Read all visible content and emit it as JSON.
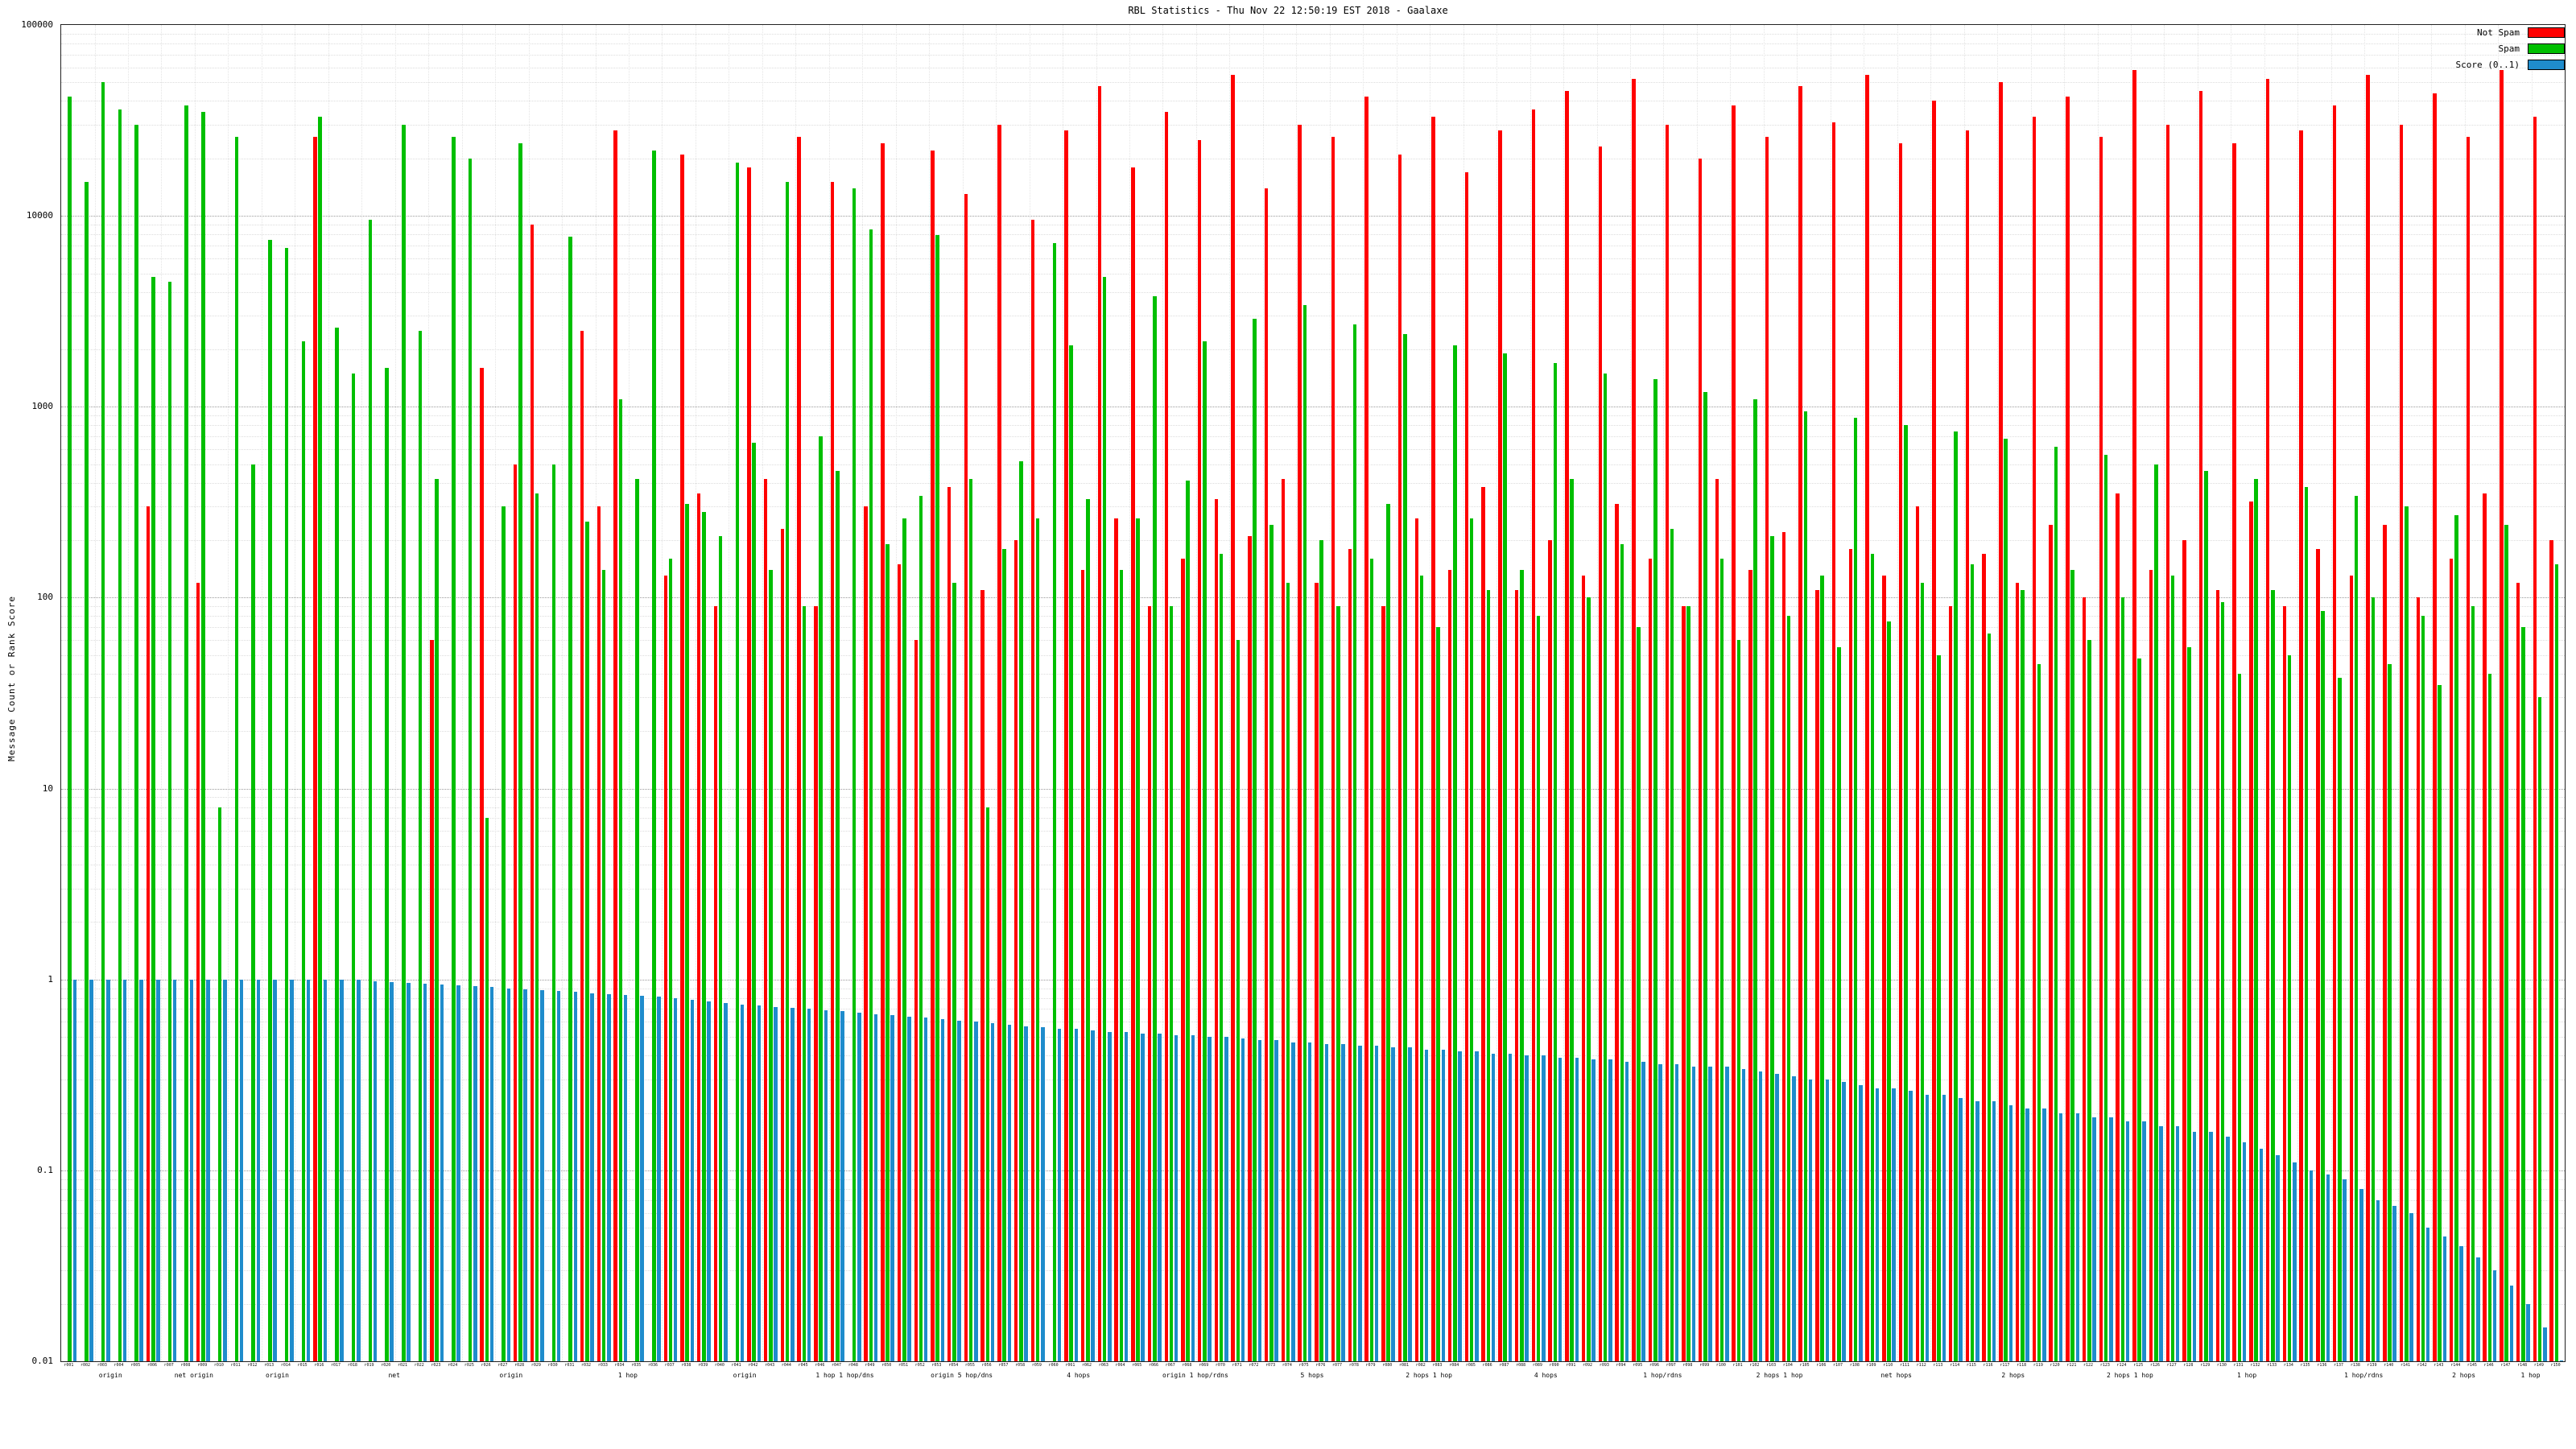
{
  "title": "RBL Statistics - Thu Nov 22 12:50:19 EST 2018 - Gaalaxe",
  "axes": {
    "ylabel": "Message Count or Rank Score",
    "ymin": 0.01,
    "ymax": 100000,
    "yscale": "log"
  },
  "legend": [
    {
      "label": "Not Spam",
      "color": "#ff0000"
    },
    {
      "label": "Spam",
      "color": "#00bf00"
    },
    {
      "label": "Score (0..1)",
      "color": "#1f8ccc"
    }
  ],
  "chart_data": {
    "type": "bar",
    "title": "RBL Statistics - Thu Nov 22 12:50:19 EST 2018 - Gaalaxe",
    "xlabel": "",
    "ylabel": "Message Count or Rank Score",
    "yscale": "log",
    "ylim": [
      0.01,
      100000
    ],
    "grid": true,
    "legend_position": "top-right",
    "categories": [
      "r001",
      "r002",
      "r003",
      "r004",
      "r005",
      "r006",
      "r007",
      "r008",
      "r009",
      "r010",
      "r011",
      "r012",
      "r013",
      "r014",
      "r015",
      "r016",
      "r017",
      "r018",
      "r019",
      "r020",
      "r021",
      "r022",
      "r023",
      "r024",
      "r025",
      "r026",
      "r027",
      "r028",
      "r029",
      "r030",
      "r031",
      "r032",
      "r033",
      "r034",
      "r035",
      "r036",
      "r037",
      "r038",
      "r039",
      "r040",
      "r041",
      "r042",
      "r043",
      "r044",
      "r045",
      "r046",
      "r047",
      "r048",
      "r049",
      "r050",
      "r051",
      "r052",
      "r053",
      "r054",
      "r055",
      "r056",
      "r057",
      "r058",
      "r059",
      "r060",
      "r061",
      "r062",
      "r063",
      "r064",
      "r065",
      "r066",
      "r067",
      "r068",
      "r069",
      "r070",
      "r071",
      "r072",
      "r073",
      "r074",
      "r075",
      "r076",
      "r077",
      "r078",
      "r079",
      "r080",
      "r081",
      "r082",
      "r083",
      "r084",
      "r085",
      "r086",
      "r087",
      "r088",
      "r089",
      "r090",
      "r091",
      "r092",
      "r093",
      "r094",
      "r095",
      "r096",
      "r097",
      "r098",
      "r099",
      "r100",
      "r101",
      "r102",
      "r103",
      "r104",
      "r105",
      "r106",
      "r107",
      "r108",
      "r109",
      "r110",
      "r111",
      "r112",
      "r113",
      "r114",
      "r115",
      "r116",
      "r117",
      "r118",
      "r119",
      "r120",
      "r121",
      "r122",
      "r123",
      "r124",
      "r125",
      "r126",
      "r127",
      "r128",
      "r129",
      "r130",
      "r131",
      "r132",
      "r133",
      "r134",
      "r135",
      "r136",
      "r137",
      "r138",
      "r139",
      "r140",
      "r141",
      "r142",
      "r143",
      "r144",
      "r145",
      "r146",
      "r147",
      "r148",
      "r149",
      "r150"
    ],
    "series": [
      {
        "name": "Not Spam",
        "color": "#ff0000",
        "values": [
          0,
          0,
          0,
          0,
          0,
          300,
          0,
          0,
          120,
          0,
          0,
          0,
          0,
          0,
          0,
          26000,
          0,
          0,
          0,
          0,
          0,
          0,
          60,
          0,
          0,
          1600,
          0,
          500,
          9000,
          0,
          0,
          2500,
          300,
          28000,
          0,
          0,
          130,
          21000,
          350,
          90,
          0,
          18000,
          420,
          230,
          26000,
          90,
          15000,
          0,
          300,
          24000,
          150,
          60,
          22000,
          380,
          13000,
          110,
          30000,
          200,
          9500,
          0,
          28000,
          140,
          48000,
          260,
          18000,
          90,
          35000,
          160,
          25000,
          330,
          55000,
          210,
          14000,
          420,
          30000,
          120,
          26000,
          180,
          42000,
          90,
          21000,
          260,
          33000,
          140,
          17000,
          380,
          28000,
          110,
          36000,
          200,
          45000,
          130,
          23000,
          310,
          52000,
          160,
          30000,
          90,
          20000,
          420,
          38000,
          140,
          26000,
          220,
          48000,
          110,
          31000,
          180,
          55000,
          130,
          24000,
          300,
          40000,
          90,
          28000,
          170,
          50000,
          120,
          33000,
          240,
          42000,
          100,
          26000,
          350,
          58000,
          140,
          30000,
          200,
          45000,
          110,
          24000,
          320,
          52000,
          90,
          28000,
          180,
          38000,
          130,
          55000,
          240,
          30000,
          100,
          44000,
          160,
          26000,
          350,
          58000,
          120,
          33000,
          200
        ]
      },
      {
        "name": "Spam",
        "color": "#00bf00",
        "values": [
          42000,
          15000,
          50000,
          36000,
          30000,
          4800,
          4500,
          38000,
          35000,
          8,
          26000,
          500,
          7500,
          6800,
          2200,
          33000,
          2600,
          1500,
          9500,
          1600,
          30000,
          2500,
          420,
          26000,
          20000,
          7,
          300,
          24000,
          350,
          500,
          7800,
          250,
          140,
          1100,
          420,
          22000,
          160,
          310,
          280,
          210,
          19000,
          650,
          140,
          15000,
          90,
          700,
          460,
          14000,
          8500,
          190,
          260,
          340,
          7900,
          120,
          420,
          8,
          180,
          520,
          260,
          7200,
          2100,
          330,
          4800,
          140,
          260,
          3800,
          90,
          410,
          2200,
          170,
          60,
          2900,
          240,
          120,
          3400,
          200,
          90,
          2700,
          160,
          310,
          2400,
          130,
          70,
          2100,
          260,
          110,
          1900,
          140,
          80,
          1700,
          420,
          100,
          1500,
          190,
          70,
          1400,
          230,
          90,
          1200,
          160,
          60,
          1100,
          210,
          80,
          950,
          130,
          55,
          880,
          170,
          75,
          800,
          120,
          50,
          740,
          150,
          65,
          680,
          110,
          45,
          620,
          140,
          60,
          560,
          100,
          48,
          500,
          130,
          55,
          460,
          95,
          40,
          420,
          110,
          50,
          380,
          85,
          38,
          340,
          100,
          45,
          300,
          80,
          35,
          270,
          90,
          40,
          240,
          70,
          30,
          150
        ]
      },
      {
        "name": "Score (0..1)",
        "color": "#1f8ccc",
        "values": [
          1,
          1,
          1,
          1,
          1,
          1,
          1,
          1,
          1,
          1,
          1,
          1,
          1,
          1,
          1,
          1,
          1,
          1,
          0.98,
          0.97,
          0.96,
          0.95,
          0.94,
          0.93,
          0.92,
          0.91,
          0.9,
          0.89,
          0.88,
          0.87,
          0.86,
          0.85,
          0.84,
          0.83,
          0.82,
          0.81,
          0.8,
          0.78,
          0.77,
          0.75,
          0.74,
          0.73,
          0.72,
          0.71,
          0.7,
          0.69,
          0.68,
          0.67,
          0.66,
          0.65,
          0.64,
          0.63,
          0.62,
          0.61,
          0.6,
          0.59,
          0.58,
          0.57,
          0.56,
          0.55,
          0.55,
          0.54,
          0.53,
          0.53,
          0.52,
          0.52,
          0.51,
          0.51,
          0.5,
          0.5,
          0.49,
          0.48,
          0.48,
          0.47,
          0.47,
          0.46,
          0.46,
          0.45,
          0.45,
          0.44,
          0.44,
          0.43,
          0.43,
          0.42,
          0.42,
          0.41,
          0.41,
          0.4,
          0.4,
          0.39,
          0.39,
          0.38,
          0.38,
          0.37,
          0.37,
          0.36,
          0.36,
          0.35,
          0.35,
          0.35,
          0.34,
          0.33,
          0.32,
          0.31,
          0.3,
          0.3,
          0.29,
          0.28,
          0.27,
          0.27,
          0.26,
          0.25,
          0.25,
          0.24,
          0.23,
          0.23,
          0.22,
          0.21,
          0.21,
          0.2,
          0.2,
          0.19,
          0.19,
          0.18,
          0.18,
          0.17,
          0.17,
          0.16,
          0.16,
          0.15,
          0.14,
          0.13,
          0.12,
          0.11,
          0.1,
          0.095,
          0.09,
          0.08,
          0.07,
          0.065,
          0.06,
          0.05,
          0.045,
          0.04,
          0.035,
          0.03,
          0.025,
          0.02,
          0.015,
          0.01
        ]
      }
    ],
    "x_group_labels": [
      {
        "index": 3,
        "label": "origin"
      },
      {
        "index": 8,
        "label": "net origin"
      },
      {
        "index": 13,
        "label": "origin"
      },
      {
        "index": 20,
        "label": "net"
      },
      {
        "index": 27,
        "label": "origin"
      },
      {
        "index": 34,
        "label": "1 hop"
      },
      {
        "index": 41,
        "label": "origin"
      },
      {
        "index": 47,
        "label": "1 hop 1 hop/dns"
      },
      {
        "index": 54,
        "label": "origin 5 hop/dns"
      },
      {
        "index": 61,
        "label": "4 hops"
      },
      {
        "index": 68,
        "label": "origin 1 hop/rdns"
      },
      {
        "index": 75,
        "label": "5 hops"
      },
      {
        "index": 82,
        "label": "2 hops 1 hop"
      },
      {
        "index": 89,
        "label": "4 hops"
      },
      {
        "index": 96,
        "label": "1 hop/rdns"
      },
      {
        "index": 103,
        "label": "2 hops 1 hop"
      },
      {
        "index": 110,
        "label": "net hops"
      },
      {
        "index": 117,
        "label": "2 hops"
      },
      {
        "index": 124,
        "label": "2 hops 1 hop"
      },
      {
        "index": 131,
        "label": "1 hop"
      },
      {
        "index": 138,
        "label": "1 hop/rdns"
      },
      {
        "index": 144,
        "label": "2 hops"
      },
      {
        "index": 148,
        "label": "1 hop"
      }
    ]
  }
}
